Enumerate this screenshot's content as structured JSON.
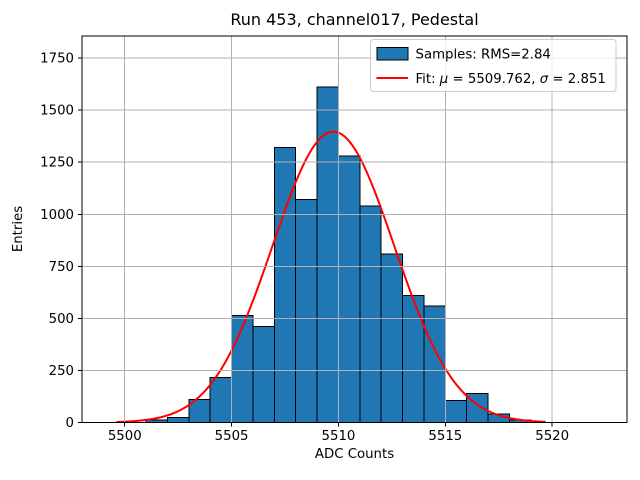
{
  "figure": {
    "title": "Run 453, channel017, Pedestal",
    "xlabel": "ADC Counts",
    "ylabel": "Entries"
  },
  "colors": {
    "bar_fill": "#1f77b4",
    "bar_edge": "#000000",
    "fit_line": "#ff0000",
    "grid": "#b0b0b0",
    "spine": "#000000",
    "legend_border": "#cccccc",
    "background": "#ffffff"
  },
  "chart_data": {
    "type": "bar",
    "subtype": "histogram",
    "title": "Run 453, channel017, Pedestal",
    "xlabel": "ADC Counts",
    "ylabel": "Entries",
    "bin_width": 1,
    "bin_left_edges": [
      5501,
      5502,
      5503,
      5504,
      5505,
      5506,
      5507,
      5508,
      5509,
      5510,
      5511,
      5512,
      5513,
      5514,
      5515,
      5516,
      5517,
      5518
    ],
    "values": [
      12,
      25,
      110,
      215,
      515,
      460,
      1320,
      1070,
      1610,
      1280,
      1040,
      810,
      610,
      560,
      105,
      140,
      40,
      13
    ],
    "xlim": [
      5498,
      5523.5
    ],
    "ylim": [
      0,
      1856
    ],
    "xtick_values": [
      5500,
      5505,
      5510,
      5515,
      5520
    ],
    "xtick_labels": [
      "5500",
      "5505",
      "5510",
      "5515",
      "5520"
    ],
    "ytick_values": [
      0,
      250,
      500,
      750,
      1000,
      1250,
      1500,
      1750
    ],
    "ytick_labels": [
      "0",
      "250",
      "500",
      "750",
      "1000",
      "1250",
      "1500",
      "1750"
    ],
    "grid": true,
    "legend_position": "upper right",
    "legend_entries": [
      "Samples: RMS=2.84",
      "Fit: μ = 5509.762, σ = 2.851"
    ],
    "fit_curve": {
      "type": "gaussian",
      "mu": 5509.762,
      "sigma": 2.851,
      "amplitude": 1397,
      "x_start": 5499.65,
      "x_end": 5519.65
    }
  }
}
